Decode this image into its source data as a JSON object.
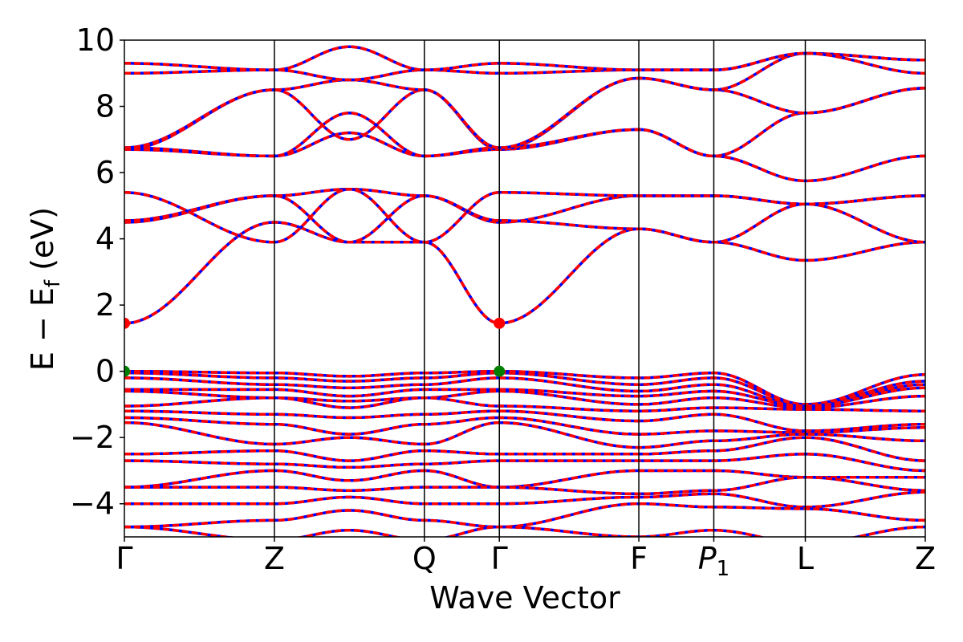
{
  "chart_data": {
    "type": "line",
    "xlabel": "Wave Vector",
    "ylabel": "E − E_f (eV)",
    "ylabel_main": "E − E",
    "ylabel_sub": "f",
    "ylabel_unit": " (eV)",
    "ylim": [
      -5,
      10
    ],
    "yticks": [
      -4,
      -2,
      0,
      2,
      4,
      6,
      8,
      10
    ],
    "ytick_labels": [
      "−4",
      "−2",
      "0",
      "2",
      "4",
      "6",
      "8",
      "10"
    ],
    "kpath": [
      {
        "label": "Γ",
        "x": 0.0
      },
      {
        "label": "Z",
        "x": 1.0
      },
      {
        "label": "Q",
        "x": 2.0
      },
      {
        "label": "Γ",
        "x": 2.5
      },
      {
        "label": "F",
        "x": 3.43
      },
      {
        "label": "P",
        "sub": "1",
        "x": 3.93
      },
      {
        "label": "L",
        "x": 4.54
      },
      {
        "label": "Z",
        "x": 5.34
      }
    ],
    "xlim": [
      0,
      5.34
    ],
    "colors": {
      "band_solid": "#0000ff",
      "band_dashed": "#ff0000",
      "vbm_marker": "#008000",
      "cbm_marker": "#ff0000"
    },
    "extrema": [
      {
        "name": "CBM",
        "x": 0.0,
        "y": 1.45,
        "color": "#ff0000"
      },
      {
        "name": "CBM",
        "x": 2.5,
        "y": 1.45,
        "color": "#ff0000"
      },
      {
        "name": "VBM",
        "x": 0.0,
        "y": 0.0,
        "color": "#008000"
      },
      {
        "name": "VBM",
        "x": 2.5,
        "y": 0.0,
        "color": "#008000"
      }
    ],
    "series": [
      {
        "y": [
          1.45,
          4.5,
          3.9,
          3.9,
          1.45,
          4.3,
          3.9,
          3.35,
          3.9
        ]
      },
      {
        "y": [
          4.5,
          5.3,
          3.9,
          5.3,
          4.5,
          5.3,
          5.3,
          5.05,
          5.3
        ]
      },
      {
        "y": [
          4.55,
          5.3,
          5.5,
          5.3,
          4.55,
          4.3,
          3.9,
          5.05,
          3.9
        ]
      },
      {
        "y": [
          5.4,
          3.9,
          5.5,
          3.9,
          5.4,
          5.3,
          5.3,
          5.05,
          5.3
        ]
      },
      {
        "y": [
          6.7,
          6.5,
          7.2,
          6.5,
          6.7,
          7.3,
          6.5,
          5.75,
          6.5
        ]
      },
      {
        "y": [
          6.75,
          6.5,
          7.8,
          6.5,
          6.75,
          7.3,
          6.5,
          7.8,
          8.55
        ]
      },
      {
        "y": [
          6.7,
          8.5,
          7.0,
          8.5,
          6.7,
          8.85,
          8.5,
          7.8,
          8.55
        ]
      },
      {
        "y": [
          6.75,
          8.5,
          8.8,
          8.5,
          6.75,
          8.85,
          8.5,
          9.6,
          9.4
        ]
      },
      {
        "y": [
          9.0,
          9.1,
          8.8,
          9.1,
          9.0,
          9.1,
          9.1,
          9.6,
          9.4
        ]
      },
      {
        "y": [
          9.3,
          9.1,
          9.8,
          9.1,
          9.3,
          9.1,
          9.1,
          9.6,
          9.0
        ]
      },
      {
        "y": [
          0.0,
          -0.05,
          -0.15,
          -0.05,
          0.0,
          -0.2,
          -0.05,
          -1.0,
          -0.1
        ]
      },
      {
        "y": [
          -0.05,
          -0.2,
          -0.3,
          -0.2,
          -0.05,
          -0.4,
          -0.2,
          -1.0,
          -0.3
        ]
      },
      {
        "y": [
          -0.2,
          -0.4,
          -0.5,
          -0.4,
          -0.2,
          -0.6,
          -0.4,
          -1.05,
          -0.4
        ]
      },
      {
        "y": [
          -0.55,
          -0.55,
          -0.75,
          -0.55,
          -0.55,
          -0.75,
          -0.6,
          -1.05,
          -0.5
        ]
      },
      {
        "y": [
          -0.6,
          -0.8,
          -0.9,
          -0.8,
          -0.6,
          -1.0,
          -0.8,
          -1.1,
          -0.75
        ]
      },
      {
        "y": [
          -1.05,
          -0.8,
          -1.1,
          -0.8,
          -1.05,
          -1.2,
          -1.1,
          -1.15,
          -1.2
        ]
      },
      {
        "y": [
          -1.2,
          -1.3,
          -1.4,
          -1.3,
          -1.2,
          -1.5,
          -1.3,
          -1.8,
          -1.6
        ]
      },
      {
        "y": [
          -1.4,
          -1.6,
          -1.9,
          -1.6,
          -1.4,
          -1.9,
          -1.8,
          -1.85,
          -1.7
        ]
      },
      {
        "y": [
          -1.55,
          -2.2,
          -2.0,
          -2.2,
          -1.55,
          -2.3,
          -2.1,
          -1.9,
          -2.1
        ]
      },
      {
        "y": [
          -2.5,
          -2.4,
          -2.7,
          -2.4,
          -2.5,
          -2.5,
          -2.4,
          -2.0,
          -2.7
        ]
      },
      {
        "y": [
          -2.7,
          -2.8,
          -2.9,
          -2.8,
          -2.7,
          -2.7,
          -2.7,
          -2.5,
          -3.0
        ]
      },
      {
        "y": [
          -3.5,
          -3.0,
          -3.3,
          -3.0,
          -3.5,
          -3.0,
          -3.0,
          -3.2,
          -3.2
        ]
      },
      {
        "y": [
          -3.5,
          -3.5,
          -3.6,
          -3.5,
          -3.5,
          -3.7,
          -3.6,
          -3.2,
          -3.6
        ]
      },
      {
        "y": [
          -4.0,
          -4.0,
          -3.8,
          -4.0,
          -4.0,
          -3.8,
          -3.7,
          -4.1,
          -3.65
        ]
      },
      {
        "y": [
          -4.7,
          -4.5,
          -4.2,
          -4.5,
          -4.7,
          -4.0,
          -4.1,
          -4.15,
          -4.5
        ]
      },
      {
        "y": [
          -4.7,
          -5.1,
          -4.8,
          -5.1,
          -4.7,
          -5.0,
          -4.8,
          -5.2,
          -4.7
        ]
      }
    ],
    "series_x": [
      0.0,
      1.0,
      1.5,
      2.0,
      2.5,
      3.43,
      3.93,
      4.54,
      5.34
    ],
    "grid": false
  }
}
